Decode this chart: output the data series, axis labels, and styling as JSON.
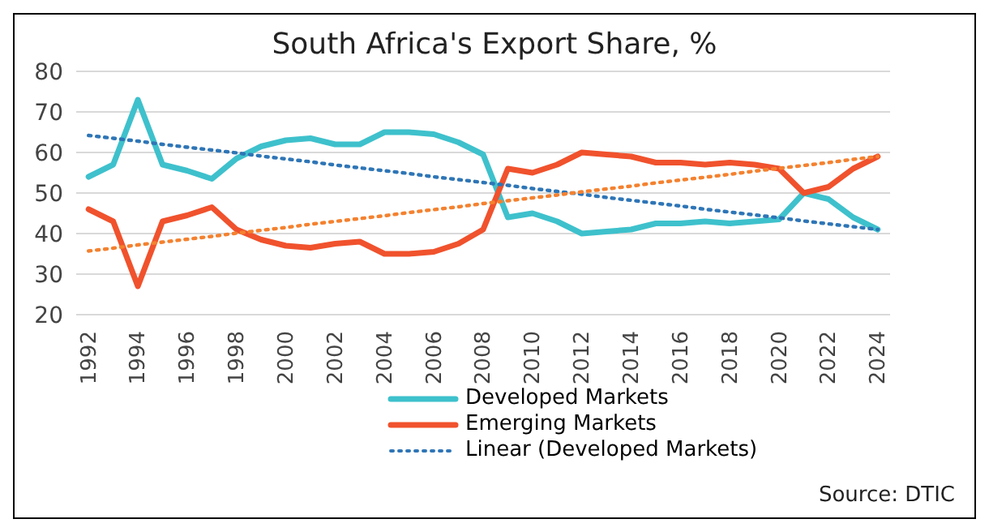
{
  "chart_data": {
    "type": "line",
    "title": "South Africa's Export Share, %",
    "x": [
      1992,
      1993,
      1994,
      1995,
      1996,
      1997,
      1998,
      1999,
      2000,
      2001,
      2002,
      2003,
      2004,
      2005,
      2006,
      2007,
      2008,
      2009,
      2010,
      2011,
      2012,
      2013,
      2014,
      2015,
      2016,
      2017,
      2018,
      2019,
      2020,
      2021,
      2022,
      2023,
      2024
    ],
    "series": [
      {
        "name": "Developed Markets",
        "color": "#3ec1cc",
        "values": [
          54,
          57,
          73,
          57,
          55.5,
          53.5,
          58.5,
          61.5,
          63,
          63.5,
          62,
          62,
          65,
          65,
          64.5,
          62.5,
          59.5,
          44,
          45,
          43,
          40,
          40.5,
          41,
          42.5,
          42.5,
          43,
          42.5,
          43,
          43.5,
          50,
          48.5,
          44,
          41
        ]
      },
      {
        "name": "Emerging Markets",
        "color": "#f0522d",
        "values": [
          46,
          43,
          27,
          43,
          44.5,
          46.5,
          41,
          38.5,
          37,
          36.5,
          37.5,
          38,
          35,
          35,
          35.5,
          37.5,
          41,
          56,
          55,
          57,
          60,
          59.5,
          59,
          57.5,
          57.5,
          57,
          57.5,
          57,
          56,
          50,
          51.5,
          56,
          59
        ]
      },
      {
        "name": "Linear (Developed Markets)",
        "type": "line",
        "color": "#2e75b6",
        "line_style": "dotted",
        "values": [
          64.2,
          63.5,
          62.8,
          62,
          61.3,
          60.6,
          59.9,
          59.1,
          58.4,
          57.7,
          56.9,
          56.2,
          55.5,
          54.8,
          54,
          53.3,
          52.6,
          51.9,
          51.1,
          50.4,
          49.7,
          48.9,
          48.2,
          47.5,
          46.8,
          46,
          45.3,
          44.6,
          43.9,
          43.1,
          42.4,
          41.7,
          41
        ]
      },
      {
        "type": "line",
        "color": "#f4812f",
        "line_style": "dotted",
        "values": [
          35.7,
          36.4,
          37.2,
          37.9,
          38.6,
          39.3,
          40.1,
          40.8,
          41.5,
          42.3,
          43,
          43.7,
          44.4,
          45.2,
          45.9,
          46.6,
          47.4,
          48.1,
          48.8,
          49.5,
          50.3,
          51,
          51.7,
          52.5,
          53.2,
          53.9,
          54.6,
          55.4,
          56.1,
          56.8,
          57.5,
          58.3,
          59
        ]
      }
    ],
    "xlim": [
      1991.5,
      2024.5
    ],
    "xticks": [
      1992,
      1994,
      1996,
      1998,
      2000,
      2002,
      2004,
      2006,
      2008,
      2010,
      2012,
      2014,
      2016,
      2018,
      2020,
      2022,
      2024
    ],
    "ylim": [
      20,
      80
    ],
    "yticks": [
      20,
      30,
      40,
      50,
      60,
      70,
      80
    ],
    "grid": "y",
    "legend": "bottom",
    "line_style": "solid",
    "marker": "none",
    "annotations": [
      "Source: DTIC"
    ]
  }
}
